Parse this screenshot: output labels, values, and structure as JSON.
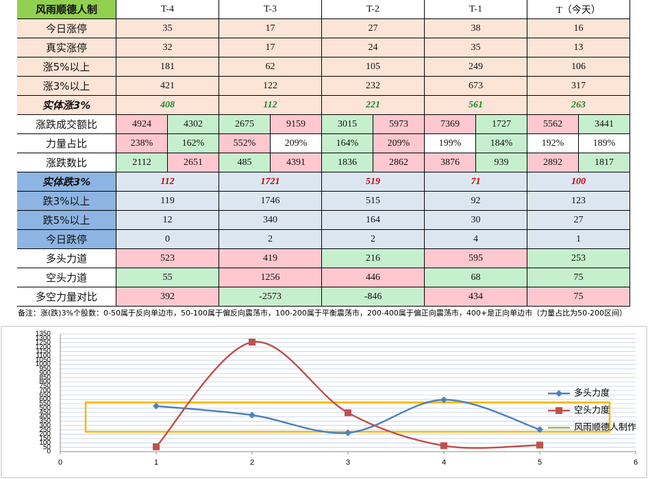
{
  "table": {
    "header": [
      "风雨顺德人制",
      "T-4",
      "T-3",
      "T-2",
      "T-1",
      "T（今天）"
    ],
    "rows": [
      {
        "label": "今日涨停",
        "values": [
          35,
          17,
          27,
          38,
          16
        ],
        "fill": "#fce4d6"
      },
      {
        "label": "真实涨停",
        "values": [
          32,
          17,
          24,
          35,
          13
        ],
        "fill": "#fce4d6"
      },
      {
        "label": "涨5%以上",
        "values": [
          181,
          62,
          105,
          249,
          106
        ],
        "fill": "#fce4d6"
      },
      {
        "label": "涨3%以上",
        "values": [
          421,
          122,
          232,
          673,
          317
        ],
        "fill": "#fce4d6"
      },
      {
        "label": "实体涨3%",
        "values": [
          408,
          112,
          221,
          561,
          263
        ],
        "fill": "#fce4d6",
        "emphasis": "#1e8a2e"
      },
      {
        "label": "涨跌成交额比",
        "pairs": [
          [
            4924,
            4302
          ],
          [
            2675,
            9159
          ],
          [
            3015,
            5973
          ],
          [
            7369,
            1727
          ],
          [
            5562,
            3441
          ]
        ],
        "pair_fills": [
          [
            "#ffc7ce",
            "#c6efce"
          ],
          [
            "#c6efce",
            "#ffc7ce"
          ],
          [
            "#c6efce",
            "#ffc7ce"
          ],
          [
            "#ffc7ce",
            "#c6efce"
          ],
          [
            "#ffc7ce",
            "#c6efce"
          ]
        ],
        "fill": "#ffffff"
      },
      {
        "label": "力量占比",
        "pairs": [
          [
            "238%",
            "162%"
          ],
          [
            "552%",
            "209%"
          ],
          [
            "164%",
            "209%"
          ],
          [
            "199%",
            "184%"
          ],
          [
            "192%",
            "189%"
          ]
        ],
        "pair_fills": [
          [
            "#ffc7ce",
            "#c6efce"
          ],
          [
            "#ffc7ce",
            "#ffffff"
          ],
          [
            "#c6efce",
            "#ffc7ce"
          ],
          [
            "#ffffff",
            "#c6efce"
          ],
          [
            "#ffffff",
            "#ffffff"
          ]
        ],
        "fill": "#ffffff"
      },
      {
        "label": "涨跌数比",
        "pairs": [
          [
            2112,
            2651
          ],
          [
            485,
            4391
          ],
          [
            1836,
            2862
          ],
          [
            3876,
            939
          ],
          [
            2892,
            1817
          ]
        ],
        "pair_fills": [
          [
            "#c6efce",
            "#ffc7ce"
          ],
          [
            "#c6efce",
            "#ffc7ce"
          ],
          [
            "#c6efce",
            "#ffc7ce"
          ],
          [
            "#ffc7ce",
            "#c6efce"
          ],
          [
            "#ffc7ce",
            "#c6efce"
          ]
        ],
        "fill": "#ffffff"
      },
      {
        "label": "实体跌3%",
        "values": [
          112,
          1721,
          519,
          71,
          100
        ],
        "fill": "#8db4e2",
        "cell_fill": "#dce6f1",
        "emphasis": "#d00000"
      },
      {
        "label": "跌3%以上",
        "values": [
          119,
          1746,
          515,
          92,
          123
        ],
        "fill": "#8db4e2",
        "cell_fill": "#dce6f1"
      },
      {
        "label": "跌5%以上",
        "values": [
          12,
          340,
          164,
          30,
          27
        ],
        "fill": "#8db4e2",
        "cell_fill": "#dce6f1"
      },
      {
        "label": "今日跌停",
        "values": [
          0,
          2,
          2,
          4,
          1
        ],
        "fill": "#8db4e2",
        "cell_fill": "#dce6f1"
      },
      {
        "label": "多头力道",
        "values": [
          523,
          419,
          216,
          595,
          253
        ],
        "fill": "#ffffff",
        "cell_fills": [
          "#ffc7ce",
          "#ffc7ce",
          "#c6efce",
          "#ffc7ce",
          "#c6efce"
        ]
      },
      {
        "label": "空头力道",
        "values": [
          55,
          1256,
          446,
          68,
          75
        ],
        "fill": "#ffffff",
        "cell_fills": [
          "#c6efce",
          "#ffc7ce",
          "#ffc7ce",
          "#c6efce",
          "#c6efce"
        ]
      },
      {
        "label": "多空力量对比",
        "values": [
          392,
          -2573,
          -846,
          434,
          75
        ],
        "fill": "#ffffff",
        "cell_fills": [
          "#ffc7ce",
          "#c6efce",
          "#c6efce",
          "#ffc7ce",
          "#ffc7ce"
        ]
      }
    ],
    "note": "备注：涨(跌)3%个股数：0-50属于反向单边市，50-100属于偏反向震荡市，100-200属于平衡震荡市，200-400属于偏正向震荡市，400+是正向单边市（力量占比为50-200区间）"
  },
  "chart_data": {
    "type": "line",
    "x": [
      1,
      2,
      3,
      4,
      5
    ],
    "series": [
      {
        "name": "多头力度",
        "color": "#4f81bd",
        "values": [
          523,
          419,
          216,
          595,
          253
        ]
      },
      {
        "name": "空头力度",
        "color": "#c0504d",
        "values": [
          55,
          1256,
          446,
          68,
          75
        ]
      }
    ],
    "extra_legend": [
      {
        "name": "风雨顺德人制作",
        "color": "#9bbb59"
      }
    ],
    "xlim": [
      0,
      6
    ],
    "xticks": [
      0,
      1,
      2,
      3,
      4,
      5,
      6
    ],
    "ylim": [
      0,
      1350
    ],
    "yticks": [
      0,
      50,
      100,
      150,
      200,
      250,
      300,
      350,
      400,
      450,
      500,
      550,
      600,
      650,
      700,
      750,
      800,
      850,
      900,
      950,
      1000,
      1050,
      1100,
      1150,
      1200,
      1250,
      1300,
      1350
    ],
    "grid": true
  }
}
